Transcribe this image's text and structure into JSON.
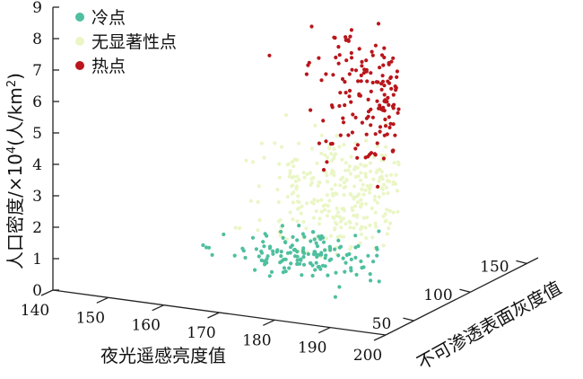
{
  "chart_data": {
    "type": "scatter",
    "projection": "3d",
    "xlabel": "夜光遥感亮度值",
    "ylabel": "不可渗透表面灰度值",
    "zlabel_prefix": "人口密度/×10",
    "zlabel_sup": "4",
    "zlabel_mid": "(人/km",
    "zlabel_sup2": "2",
    "zlabel_suffix": ")",
    "x_ticks": [
      "140",
      "150",
      "160",
      "170",
      "180",
      "190",
      "200"
    ],
    "y_ticks": [
      "50",
      "100",
      "150"
    ],
    "z_ticks": [
      "0",
      "1",
      "2",
      "3",
      "4",
      "5",
      "6",
      "7",
      "8",
      "9"
    ],
    "xlim": [
      140,
      200
    ],
    "ylim": [
      25,
      160
    ],
    "zlim": [
      0,
      9
    ],
    "legend_position": "top-left",
    "series": [
      {
        "name": "冷点",
        "color": "#4fbf9f",
        "x_range": [
          160,
          200
        ],
        "y_range": [
          30,
          80
        ],
        "z_range": [
          0.4,
          2.6
        ],
        "count": 150
      },
      {
        "name": "无显著性点",
        "color": "#eaf6c6",
        "x_range": [
          160,
          200
        ],
        "y_range": [
          30,
          150
        ],
        "z_range": [
          0.5,
          5.2
        ],
        "count": 340
      },
      {
        "name": "热点",
        "color": "#b8161c",
        "x_range": [
          165,
          200
        ],
        "y_range": [
          40,
          150
        ],
        "z_range": [
          2.8,
          9.0
        ],
        "count": 220
      }
    ]
  }
}
